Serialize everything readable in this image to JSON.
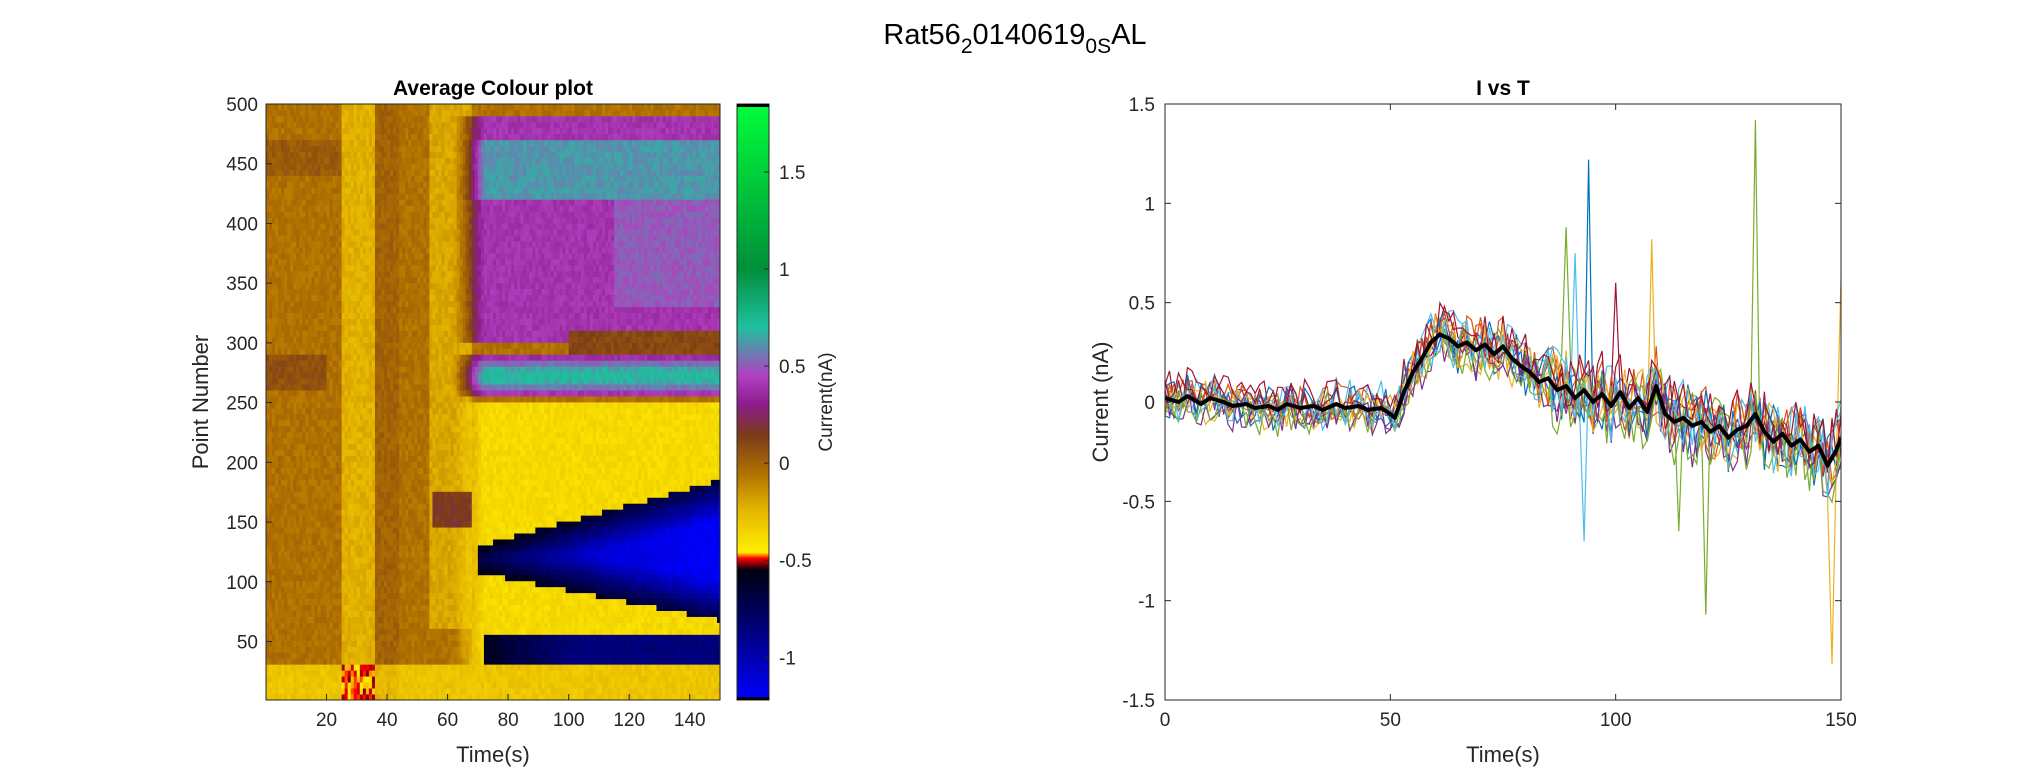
{
  "figure": {
    "suptitle": {
      "base": "Rat56",
      "sub1": "2",
      "mid": "0140619",
      "sub2": "0S",
      "end": "AL"
    }
  },
  "chart_data": [
    {
      "type": "heatmap",
      "title": "Average Colour plot",
      "xlabel": "Time(s)",
      "ylabel": "Point Number",
      "xlim": [
        0,
        150
      ],
      "ylim": [
        1,
        500
      ],
      "xticks": [
        20,
        40,
        60,
        80,
        100,
        120,
        140
      ],
      "yticks": [
        50,
        100,
        150,
        200,
        250,
        300,
        350,
        400,
        450,
        500
      ],
      "colorbar": {
        "label": "Current(nA)",
        "range": [
          -1.22,
          1.85
        ],
        "ticks": [
          -1,
          -0.5,
          0,
          0.5,
          1,
          1.5
        ],
        "colormap": [
          {
            "v": -1.22,
            "color": "#0000ff"
          },
          {
            "v": -0.9,
            "color": "#00008b"
          },
          {
            "v": -0.55,
            "color": "#000010"
          },
          {
            "v": -0.49,
            "color": "#ff0000"
          },
          {
            "v": -0.46,
            "color": "#ffee00"
          },
          {
            "v": -0.25,
            "color": "#e6b800"
          },
          {
            "v": -0.05,
            "color": "#b07000"
          },
          {
            "v": 0.15,
            "color": "#7a3a1a"
          },
          {
            "v": 0.3,
            "color": "#8c1c8c"
          },
          {
            "v": 0.45,
            "color": "#b040c0"
          },
          {
            "v": 0.7,
            "color": "#20c0a0"
          },
          {
            "v": 1.0,
            "color": "#008f3a"
          },
          {
            "v": 1.85,
            "color": "#00ff3a"
          }
        ]
      },
      "features": [
        {
          "region": "baseline",
          "t": [
            0,
            70
          ],
          "points": [
            1,
            500
          ],
          "current_nA": -0.05
        },
        {
          "region": "upper band",
          "t": [
            70,
            150
          ],
          "points": [
            300,
            490
          ],
          "current_nA": 0.45
        },
        {
          "region": "peak band",
          "t": [
            70,
            150
          ],
          "points": [
            255,
            290
          ],
          "current_nA": 0.7
        },
        {
          "region": "negative wedge",
          "t": [
            70,
            150
          ],
          "points": [
            75,
            185
          ],
          "current_nA": -0.9
        },
        {
          "region": "lower negative band",
          "t": [
            72,
            150
          ],
          "points": [
            30,
            55
          ],
          "current_nA": -0.8
        }
      ]
    },
    {
      "type": "line",
      "title": "I vs T",
      "xlabel": "Time(s)",
      "ylabel": "Current (nA)",
      "xlim": [
        0,
        150
      ],
      "ylim": [
        -1.5,
        1.5
      ],
      "xticks": [
        0,
        50,
        100,
        150
      ],
      "yticks": [
        -1.5,
        -1,
        -0.5,
        0,
        0.5,
        1,
        1.5
      ],
      "series": [
        {
          "color": "#000000",
          "width": 4,
          "values": [
            [
              0,
              0.02
            ],
            [
              3,
              0.0
            ],
            [
              5,
              0.03
            ],
            [
              8,
              -0.01
            ],
            [
              10,
              0.02
            ],
            [
              13,
              0.0
            ],
            [
              15,
              -0.02
            ],
            [
              18,
              -0.01
            ],
            [
              20,
              -0.03
            ],
            [
              23,
              -0.02
            ],
            [
              25,
              -0.04
            ],
            [
              27,
              -0.01
            ],
            [
              30,
              -0.03
            ],
            [
              33,
              -0.02
            ],
            [
              35,
              -0.04
            ],
            [
              38,
              -0.01
            ],
            [
              40,
              -0.03
            ],
            [
              43,
              -0.02
            ],
            [
              45,
              -0.04
            ],
            [
              48,
              -0.03
            ],
            [
              50,
              -0.06
            ],
            [
              51,
              -0.08
            ],
            [
              53,
              0.05
            ],
            [
              55,
              0.15
            ],
            [
              57,
              0.22
            ],
            [
              59,
              0.3
            ],
            [
              61,
              0.34
            ],
            [
              63,
              0.32
            ],
            [
              65,
              0.28
            ],
            [
              67,
              0.3
            ],
            [
              69,
              0.26
            ],
            [
              71,
              0.29
            ],
            [
              73,
              0.24
            ],
            [
              75,
              0.28
            ],
            [
              77,
              0.22
            ],
            [
              79,
              0.18
            ],
            [
              81,
              0.15
            ],
            [
              83,
              0.1
            ],
            [
              85,
              0.12
            ],
            [
              87,
              0.06
            ],
            [
              89,
              0.08
            ],
            [
              91,
              0.02
            ],
            [
              93,
              0.06
            ],
            [
              95,
              0.0
            ],
            [
              97,
              0.04
            ],
            [
              99,
              -0.02
            ],
            [
              101,
              0.05
            ],
            [
              103,
              -0.03
            ],
            [
              105,
              0.02
            ],
            [
              107,
              -0.05
            ],
            [
              109,
              0.08
            ],
            [
              111,
              -0.06
            ],
            [
              113,
              -0.1
            ],
            [
              115,
              -0.08
            ],
            [
              117,
              -0.12
            ],
            [
              119,
              -0.1
            ],
            [
              121,
              -0.15
            ],
            [
              123,
              -0.12
            ],
            [
              125,
              -0.18
            ],
            [
              127,
              -0.14
            ],
            [
              129,
              -0.12
            ],
            [
              131,
              -0.06
            ],
            [
              133,
              -0.15
            ],
            [
              135,
              -0.2
            ],
            [
              137,
              -0.16
            ],
            [
              139,
              -0.22
            ],
            [
              141,
              -0.19
            ],
            [
              143,
              -0.25
            ],
            [
              145,
              -0.22
            ],
            [
              147,
              -0.32
            ],
            [
              149,
              -0.24
            ],
            [
              150,
              -0.18
            ]
          ]
        }
      ],
      "trials": {
        "colors": [
          "#0072bd",
          "#d95319",
          "#edb120",
          "#7e2f8e",
          "#77ac30",
          "#4dbeee",
          "#a2142f",
          "#0072bd",
          "#d95319",
          "#edb120",
          "#7e2f8e",
          "#77ac30",
          "#4dbeee",
          "#a2142f"
        ],
        "spikes": [
          {
            "trial": 0,
            "t": 94,
            "v": 1.22
          },
          {
            "trial": 4,
            "t": 131,
            "v": 1.42
          },
          {
            "trial": 4,
            "t": 89,
            "v": 0.88
          },
          {
            "trial": 2,
            "t": 108,
            "v": 0.82
          },
          {
            "trial": 5,
            "t": 91,
            "v": 0.75
          },
          {
            "trial": 4,
            "t": 120,
            "v": -1.07
          },
          {
            "trial": 2,
            "t": 148,
            "v": -1.32
          },
          {
            "trial": 4,
            "t": 114,
            "v": -0.65
          },
          {
            "trial": 5,
            "t": 93,
            "v": -0.7
          },
          {
            "trial": 2,
            "t": 150,
            "v": 0.62
          },
          {
            "trial": 6,
            "t": 100,
            "v": 0.6
          }
        ]
      }
    }
  ]
}
